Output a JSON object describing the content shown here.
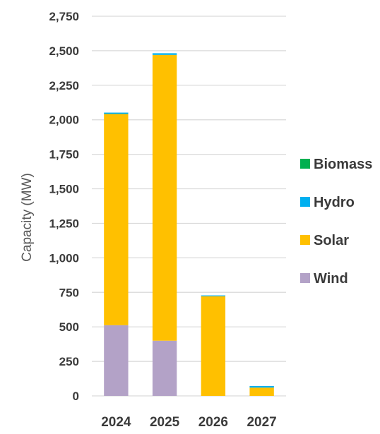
{
  "chart_data": {
    "type": "bar",
    "stacked": true,
    "categories": [
      "2024",
      "2025",
      "2026",
      "2027"
    ],
    "series": [
      {
        "name": "Wind",
        "color": "#b3a2c7",
        "values": [
          512,
          400,
          0,
          0
        ]
      },
      {
        "name": "Solar",
        "color": "#ffc000",
        "values": [
          1530,
          2070,
          722,
          60
        ]
      },
      {
        "name": "Hydro",
        "color": "#00b0f0",
        "values": [
          10,
          12,
          6,
          12
        ]
      },
      {
        "name": "Biomass",
        "color": "#00b050",
        "values": [
          0,
          0,
          0,
          0
        ]
      }
    ],
    "legend_order": [
      "Biomass",
      "Hydro",
      "Solar",
      "Wind"
    ],
    "ylabel": "Capacity (MW)",
    "xlabel": "",
    "ylim": [
      0,
      2750
    ],
    "yticks": [
      0,
      250,
      500,
      750,
      1000,
      1250,
      1500,
      1750,
      2000,
      2250,
      2500,
      2750
    ],
    "ytick_labels": [
      "0",
      "250",
      "500",
      "750",
      "1,000",
      "1,250",
      "1,500",
      "1,750",
      "2,000",
      "2,250",
      "2,500",
      "2,750"
    ],
    "grid": true,
    "legend_position": "right"
  }
}
